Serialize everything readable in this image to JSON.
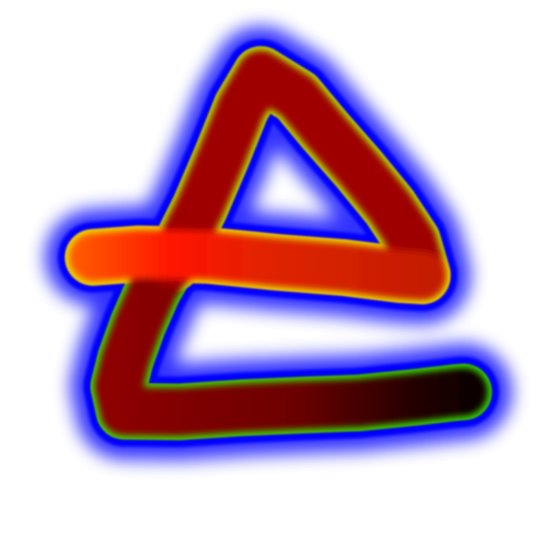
{
  "palette": {
    "background": "#ffffff",
    "glow": "#0000ff",
    "edge": {
      "bar": "#e8e000",
      "triangle": "#b4e400",
      "base": "#3cdc00"
    },
    "core": {
      "bar": [
        "#ff5a00",
        "#ff1400",
        "#e02400",
        "#c41c00"
      ],
      "triangle": "#9e0000",
      "base": [
        "#8c0000",
        "#6a0000",
        "#220000",
        "#080000"
      ]
    }
  }
}
